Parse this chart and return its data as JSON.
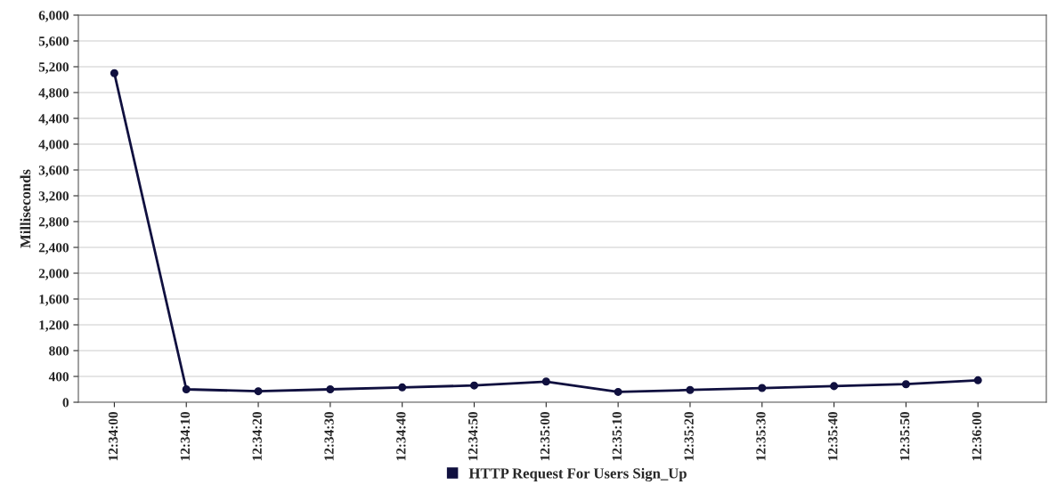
{
  "chart_data": {
    "type": "line",
    "ylabel": "Milliseconds",
    "categories": [
      "12:34:00",
      "12:34:10",
      "12:34:20",
      "12:34:30",
      "12:34:40",
      "12:34:50",
      "12:35:00",
      "12:35:10",
      "12:35:20",
      "12:35:30",
      "12:35:40",
      "12:35:50",
      "12:36:00"
    ],
    "series": [
      {
        "name": "HTTP Request For Users Sign_Up",
        "color": "#10103f",
        "values": [
          5100,
          200,
          170,
          200,
          230,
          260,
          320,
          160,
          190,
          220,
          250,
          280,
          340
        ]
      }
    ],
    "ylim": [
      0,
      6000
    ],
    "yticks": [
      {
        "value": 0,
        "label": "0"
      },
      {
        "value": 400,
        "label": "400"
      },
      {
        "value": 800,
        "label": "800"
      },
      {
        "value": 1200,
        "label": "1,200"
      },
      {
        "value": 1600,
        "label": "1,600"
      },
      {
        "value": 2000,
        "label": "2,000"
      },
      {
        "value": 2400,
        "label": "2,400"
      },
      {
        "value": 2800,
        "label": "2,800"
      },
      {
        "value": 3200,
        "label": "3,200"
      },
      {
        "value": 3600,
        "label": "3,600"
      },
      {
        "value": 4000,
        "label": "4,000"
      },
      {
        "value": 4400,
        "label": "4,400"
      },
      {
        "value": 4800,
        "label": "4,800"
      },
      {
        "value": 5200,
        "label": "5,200"
      },
      {
        "value": 5600,
        "label": "5,600"
      },
      {
        "value": 6000,
        "label": "6,000"
      }
    ],
    "grid": "y",
    "legend": "bottom",
    "marker": "circle",
    "line_style": "solid"
  }
}
